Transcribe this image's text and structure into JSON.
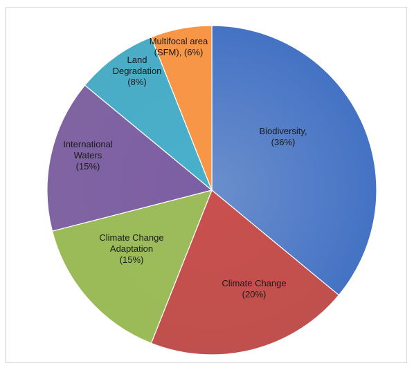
{
  "chart_data": {
    "type": "pie",
    "start_angle_deg": 0,
    "direction": "clockwise",
    "slices": [
      {
        "lines": [
          "Biodiversity,",
          "(36%)"
        ],
        "value": 36,
        "color": "#6b8fcc",
        "edge": "#4472c4"
      },
      {
        "lines": [
          "Climate Change",
          "(20%)"
        ],
        "value": 20,
        "color": "#c9504e",
        "edge": "#c0504d"
      },
      {
        "lines": [
          "Climate Change",
          "Adaptation",
          "(15%)"
        ],
        "value": 15,
        "color": "#9cbb5a",
        "edge": "#9bbb59"
      },
      {
        "lines": [
          "International",
          "Waters",
          "(15%)"
        ],
        "value": 15,
        "color": "#7c5ea4",
        "edge": "#8064a2"
      },
      {
        "lines": [
          "Land",
          "Degradation",
          "(8%)"
        ],
        "value": 8,
        "color": "#48b0cc",
        "edge": "#4bacc6"
      },
      {
        "lines": [
          "Multifocal area",
          "(SFM), (6%)"
        ],
        "value": 6,
        "color": "#f79646",
        "edge": "#f79646"
      }
    ]
  }
}
